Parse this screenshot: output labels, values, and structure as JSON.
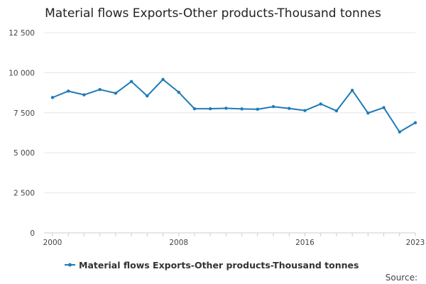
{
  "chart_data": {
    "type": "line",
    "title": "Material flows Exports-Other products-Thousand tonnes",
    "xlabel": "",
    "ylabel": "",
    "xlim": [
      2000,
      2023
    ],
    "ylim": [
      0,
      12500
    ],
    "x_ticks": [
      2000,
      2008,
      2016,
      2023
    ],
    "y_ticks": [
      0,
      2500,
      5000,
      7500,
      10000,
      12500
    ],
    "y_tick_labels": [
      "0",
      "2 500",
      "5 000",
      "7 500",
      "10 000",
      "12 500"
    ],
    "grid": "horizontal",
    "legend_position": "bottom",
    "colors": {
      "series": "#1f7bb7",
      "grid": "#e6e6e6",
      "axis": "#cccccc"
    },
    "series": [
      {
        "name": "Material flows Exports-Other products-Thousand tonnes",
        "x": [
          2000,
          2001,
          2002,
          2003,
          2004,
          2005,
          2006,
          2007,
          2008,
          2009,
          2010,
          2011,
          2012,
          2013,
          2014,
          2015,
          2016,
          2017,
          2018,
          2019,
          2020,
          2021,
          2022,
          2023
        ],
        "values": [
          8450,
          8850,
          8620,
          8950,
          8720,
          9450,
          8550,
          9580,
          8780,
          7750,
          7750,
          7780,
          7740,
          7720,
          7880,
          7770,
          7640,
          8050,
          7620,
          8900,
          7480,
          7820,
          6300,
          6880
        ]
      }
    ]
  },
  "footer": {
    "source_label": "Source:"
  }
}
